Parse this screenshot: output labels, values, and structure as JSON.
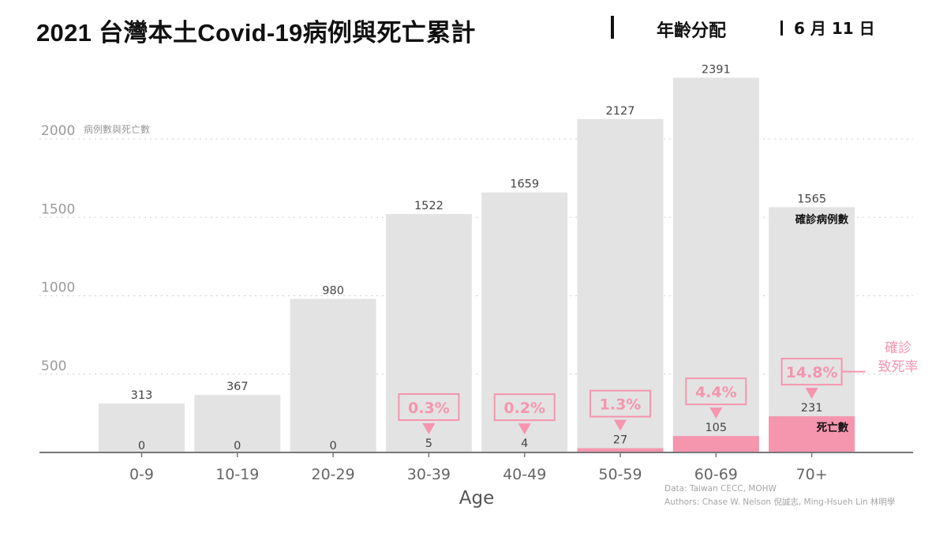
{
  "header": {
    "title": "2021 台灣本土Covid-19病例與死亡累計",
    "subtitle": "年齡分配",
    "date": "6 月 11 日"
  },
  "chart_data": {
    "type": "bar",
    "categories": [
      "0-9",
      "10-19",
      "20-29",
      "30-39",
      "40-49",
      "50-59",
      "60-69",
      "70+"
    ],
    "series": [
      {
        "name": "確診病例數",
        "values": [
          313,
          367,
          980,
          1522,
          1659,
          2127,
          2391,
          1565
        ]
      },
      {
        "name": "死亡數",
        "values": [
          0,
          0,
          0,
          5,
          4,
          27,
          105,
          231
        ]
      }
    ],
    "case_fatality_rate": [
      "",
      "",
      "",
      "0.3%",
      "0.2%",
      "1.3%",
      "4.4%",
      "14.8%"
    ],
    "ylabel": "病例數與死亡數",
    "xlabel": "Age",
    "ylim": [
      0,
      2400
    ],
    "yticks": [
      500,
      1000,
      1500,
      2000
    ],
    "cfr_label": [
      "確診",
      "致死率"
    ],
    "grid": "horizontal dotted",
    "colors": {
      "cases": "#e3e3e3",
      "deaths": "#f595ae",
      "cfr": "#f595ae",
      "axis": "#777777"
    }
  },
  "credits": {
    "data": "Data: Taiwan CECC, MOHW",
    "authors": "Authors: Chase W. Nelson 倪誠志, Ming-Hsueh Lin 林明學"
  }
}
